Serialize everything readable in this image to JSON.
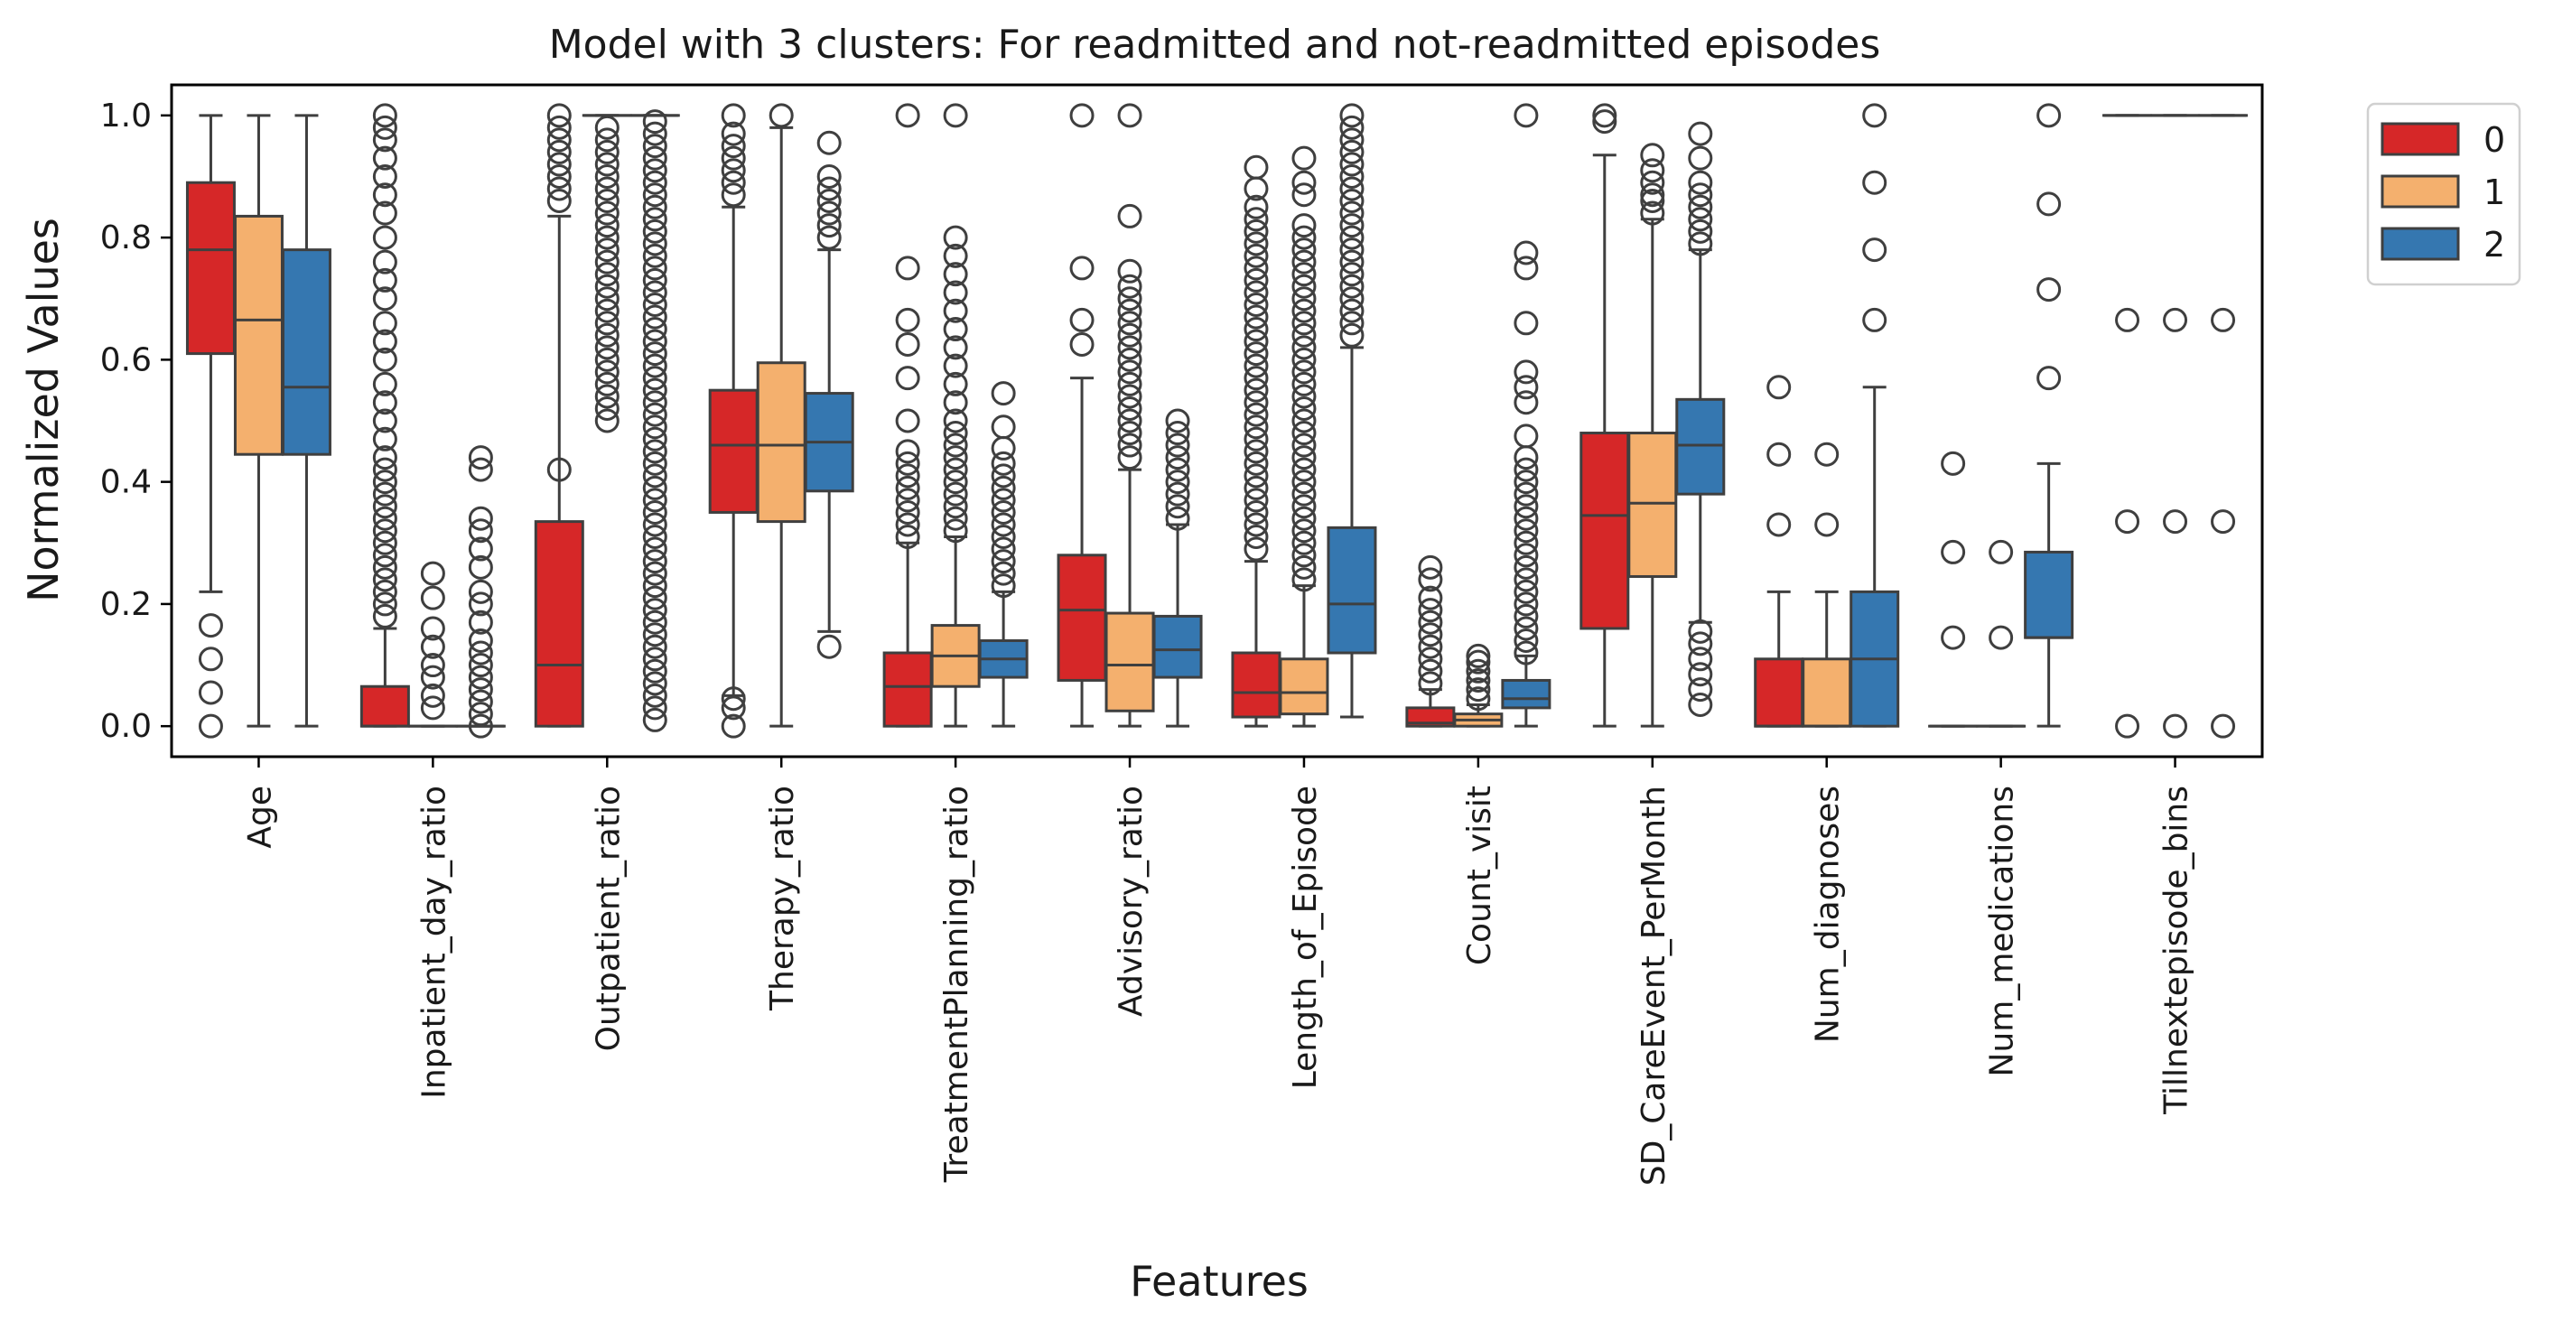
{
  "chart_data": {
    "type": "boxplot",
    "title": "Model with 3 clusters: For readmitted and not-readmitted episodes",
    "xlabel": "Features",
    "ylabel": "Normalized Values",
    "ylim": [
      -0.05,
      1.05
    ],
    "yticks": [
      "0.0",
      "0.2",
      "0.4",
      "0.6",
      "0.8",
      "1.0"
    ],
    "legend": {
      "position": "outside-top-right",
      "title": ""
    },
    "grid": false,
    "series": [
      {
        "name": "0",
        "color": "#d62728"
      },
      {
        "name": "1",
        "color": "#f4b06e"
      },
      {
        "name": "2",
        "color": "#3577b0"
      }
    ],
    "categories": [
      "Age",
      "Inpatient_day_ratio",
      "Outpatient_ratio",
      "Therapy_ratio",
      "TreatmentPlanning_ratio",
      "Advisory_ratio",
      "Length_of_Episode",
      "Count_visit",
      "SD_CareEvent_PerMonth",
      "Num_diagnoses",
      "Num_medications",
      "Tillnextepisode_bins"
    ],
    "boxes": [
      [
        {
          "whislo": 0.22,
          "q1": 0.61,
          "med": 0.78,
          "q3": 0.89,
          "whishi": 1.0,
          "fliers": [
            0.0,
            0.055,
            0.11,
            0.165
          ]
        },
        {
          "whislo": 0.0,
          "q1": 0.445,
          "med": 0.665,
          "q3": 0.835,
          "whishi": 1.0,
          "fliers": []
        },
        {
          "whislo": 0.0,
          "q1": 0.445,
          "med": 0.555,
          "q3": 0.78,
          "whishi": 1.0,
          "fliers": []
        }
      ],
      [
        {
          "whislo": 0.0,
          "q1": 0.0,
          "med": 0.0,
          "q3": 0.065,
          "whishi": 0.16,
          "fliers": [
            0.18,
            0.2,
            0.22,
            0.24,
            0.26,
            0.28,
            0.3,
            0.32,
            0.34,
            0.36,
            0.38,
            0.4,
            0.42,
            0.44,
            0.47,
            0.5,
            0.53,
            0.56,
            0.6,
            0.63,
            0.66,
            0.7,
            0.73,
            0.76,
            0.8,
            0.84,
            0.87,
            0.9,
            0.93,
            0.96,
            0.98,
            1.0
          ]
        },
        {
          "whislo": 0.0,
          "q1": 0.0,
          "med": 0.0,
          "q3": 0.0,
          "whishi": 0.0,
          "fliers": [
            0.03,
            0.05,
            0.08,
            0.1,
            0.13,
            0.16,
            0.21,
            0.25
          ]
        },
        {
          "whislo": 0.0,
          "q1": 0.0,
          "med": 0.0,
          "q3": 0.0,
          "whishi": 0.0,
          "fliers": [
            0.0,
            0.02,
            0.04,
            0.06,
            0.08,
            0.1,
            0.12,
            0.14,
            0.17,
            0.2,
            0.22,
            0.26,
            0.29,
            0.32,
            0.34,
            0.42,
            0.44
          ]
        }
      ],
      [
        {
          "whislo": 0.0,
          "q1": 0.0,
          "med": 0.1,
          "q3": 0.335,
          "whishi": 0.835,
          "fliers": [
            0.42,
            0.86,
            0.88,
            0.9,
            0.92,
            0.94,
            0.96,
            0.98,
            1.0
          ]
        },
        {
          "whislo": 1.0,
          "q1": 1.0,
          "med": 1.0,
          "q3": 1.0,
          "whishi": 1.0,
          "fliers": [
            0.5,
            0.52,
            0.54,
            0.56,
            0.58,
            0.6,
            0.62,
            0.64,
            0.66,
            0.68,
            0.7,
            0.72,
            0.74,
            0.76,
            0.78,
            0.8,
            0.82,
            0.84,
            0.86,
            0.88,
            0.9,
            0.92,
            0.94,
            0.96,
            0.98
          ]
        },
        {
          "whislo": 1.0,
          "q1": 1.0,
          "med": 1.0,
          "q3": 1.0,
          "whishi": 1.0,
          "fliers": [
            0.01,
            0.03,
            0.05,
            0.07,
            0.09,
            0.11,
            0.13,
            0.15,
            0.17,
            0.19,
            0.21,
            0.23,
            0.25,
            0.27,
            0.29,
            0.31,
            0.33,
            0.35,
            0.37,
            0.39,
            0.41,
            0.43,
            0.45,
            0.47,
            0.49,
            0.51,
            0.53,
            0.55,
            0.57,
            0.59,
            0.61,
            0.63,
            0.65,
            0.67,
            0.69,
            0.71,
            0.73,
            0.75,
            0.77,
            0.79,
            0.81,
            0.83,
            0.85,
            0.87,
            0.89,
            0.91,
            0.93,
            0.95,
            0.97,
            0.99
          ]
        }
      ],
      [
        {
          "whislo": 0.05,
          "q1": 0.35,
          "med": 0.46,
          "q3": 0.55,
          "whishi": 0.85,
          "fliers": [
            0.0,
            0.03,
            0.045,
            0.87,
            0.89,
            0.91,
            0.93,
            0.95,
            0.97,
            1.0
          ]
        },
        {
          "whislo": 0.0,
          "q1": 0.335,
          "med": 0.46,
          "q3": 0.595,
          "whishi": 0.98,
          "fliers": [
            1.0
          ]
        },
        {
          "whislo": 0.155,
          "q1": 0.385,
          "med": 0.465,
          "q3": 0.545,
          "whishi": 0.78,
          "fliers": [
            0.13,
            0.8,
            0.82,
            0.84,
            0.86,
            0.88,
            0.9,
            0.955
          ]
        }
      ],
      [
        {
          "whislo": 0.0,
          "q1": 0.0,
          "med": 0.065,
          "q3": 0.12,
          "whishi": 0.3,
          "fliers": [
            0.31,
            0.33,
            0.35,
            0.37,
            0.39,
            0.41,
            0.43,
            0.45,
            0.5,
            0.57,
            0.625,
            0.665,
            0.75,
            1.0
          ]
        },
        {
          "whislo": 0.0,
          "q1": 0.065,
          "med": 0.115,
          "q3": 0.165,
          "whishi": 0.31,
          "fliers": [
            0.32,
            0.34,
            0.36,
            0.38,
            0.4,
            0.42,
            0.44,
            0.46,
            0.48,
            0.5,
            0.53,
            0.56,
            0.59,
            0.62,
            0.65,
            0.68,
            0.71,
            0.74,
            0.77,
            0.8,
            1.0
          ]
        },
        {
          "whislo": 0.0,
          "q1": 0.08,
          "med": 0.11,
          "q3": 0.14,
          "whishi": 0.22,
          "fliers": [
            0.23,
            0.25,
            0.27,
            0.29,
            0.31,
            0.33,
            0.35,
            0.37,
            0.39,
            0.41,
            0.43,
            0.455,
            0.49,
            0.545
          ]
        }
      ],
      [
        {
          "whislo": 0.0,
          "q1": 0.075,
          "med": 0.19,
          "q3": 0.28,
          "whishi": 0.57,
          "fliers": [
            0.625,
            0.665,
            0.75,
            1.0
          ]
        },
        {
          "whislo": 0.0,
          "q1": 0.025,
          "med": 0.1,
          "q3": 0.185,
          "whishi": 0.42,
          "fliers": [
            0.44,
            0.46,
            0.48,
            0.5,
            0.52,
            0.54,
            0.56,
            0.58,
            0.6,
            0.62,
            0.64,
            0.66,
            0.68,
            0.7,
            0.72,
            0.745,
            0.835,
            1.0
          ]
        },
        {
          "whislo": 0.0,
          "q1": 0.08,
          "med": 0.125,
          "q3": 0.18,
          "whishi": 0.33,
          "fliers": [
            0.34,
            0.36,
            0.38,
            0.4,
            0.42,
            0.44,
            0.46,
            0.48,
            0.5
          ]
        }
      ],
      [
        {
          "whislo": 0.0,
          "q1": 0.015,
          "med": 0.055,
          "q3": 0.12,
          "whishi": 0.27,
          "fliers": [
            0.29,
            0.31,
            0.33,
            0.35,
            0.37,
            0.39,
            0.41,
            0.43,
            0.45,
            0.47,
            0.49,
            0.51,
            0.53,
            0.55,
            0.57,
            0.59,
            0.61,
            0.63,
            0.65,
            0.67,
            0.69,
            0.71,
            0.73,
            0.75,
            0.77,
            0.79,
            0.81,
            0.83,
            0.85,
            0.88,
            0.915
          ]
        },
        {
          "whislo": 0.0,
          "q1": 0.02,
          "med": 0.055,
          "q3": 0.11,
          "whishi": 0.23,
          "fliers": [
            0.24,
            0.26,
            0.28,
            0.3,
            0.32,
            0.34,
            0.36,
            0.38,
            0.4,
            0.42,
            0.44,
            0.46,
            0.48,
            0.5,
            0.52,
            0.54,
            0.56,
            0.58,
            0.6,
            0.62,
            0.64,
            0.66,
            0.68,
            0.7,
            0.72,
            0.74,
            0.76,
            0.78,
            0.8,
            0.82,
            0.87,
            0.89,
            0.93
          ]
        },
        {
          "whislo": 0.015,
          "q1": 0.12,
          "med": 0.2,
          "q3": 0.325,
          "whishi": 0.62,
          "fliers": [
            0.64,
            0.66,
            0.68,
            0.7,
            0.72,
            0.74,
            0.76,
            0.78,
            0.8,
            0.82,
            0.84,
            0.86,
            0.88,
            0.9,
            0.92,
            0.94,
            0.96,
            0.98,
            1.0
          ]
        }
      ],
      [
        {
          "whislo": 0.0,
          "q1": 0.0,
          "med": 0.005,
          "q3": 0.03,
          "whishi": 0.06,
          "fliers": [
            0.07,
            0.09,
            0.11,
            0.13,
            0.15,
            0.17,
            0.19,
            0.21,
            0.24,
            0.26
          ]
        },
        {
          "whislo": 0.0,
          "q1": 0.0,
          "med": 0.01,
          "q3": 0.02,
          "whishi": 0.035,
          "fliers": [
            0.045,
            0.06,
            0.075,
            0.09,
            0.105,
            0.115
          ]
        },
        {
          "whislo": 0.0,
          "q1": 0.03,
          "med": 0.045,
          "q3": 0.075,
          "whishi": 0.115,
          "fliers": [
            0.12,
            0.14,
            0.16,
            0.18,
            0.2,
            0.22,
            0.24,
            0.26,
            0.28,
            0.3,
            0.32,
            0.34,
            0.36,
            0.38,
            0.4,
            0.42,
            0.44,
            0.475,
            0.53,
            0.555,
            0.58,
            0.66,
            0.75,
            0.775,
            1.0
          ]
        }
      ],
      [
        {
          "whislo": 0.0,
          "q1": 0.16,
          "med": 0.345,
          "q3": 0.48,
          "whishi": 0.935,
          "fliers": [
            0.99,
            1.0
          ]
        },
        {
          "whislo": 0.0,
          "q1": 0.245,
          "med": 0.365,
          "q3": 0.48,
          "whishi": 0.83,
          "fliers": [
            0.84,
            0.86,
            0.87,
            0.89,
            0.91,
            0.935
          ]
        },
        {
          "whislo": 0.17,
          "q1": 0.38,
          "med": 0.46,
          "q3": 0.535,
          "whishi": 0.78,
          "fliers": [
            0.035,
            0.06,
            0.085,
            0.11,
            0.135,
            0.155,
            0.79,
            0.81,
            0.83,
            0.85,
            0.87,
            0.89,
            0.93,
            0.97
          ]
        }
      ],
      [
        {
          "whislo": 0.0,
          "q1": 0.0,
          "med": 0.0,
          "q3": 0.11,
          "whishi": 0.22,
          "fliers": [
            0.33,
            0.445,
            0.555
          ]
        },
        {
          "whislo": 0.0,
          "q1": 0.0,
          "med": 0.0,
          "q3": 0.11,
          "whishi": 0.22,
          "fliers": [
            0.33,
            0.445
          ]
        },
        {
          "whislo": 0.0,
          "q1": 0.0,
          "med": 0.11,
          "q3": 0.22,
          "whishi": 0.555,
          "fliers": [
            0.665,
            0.78,
            0.89,
            1.0
          ]
        }
      ],
      [
        {
          "whislo": 0.0,
          "q1": 0.0,
          "med": 0.0,
          "q3": 0.0,
          "whishi": 0.0,
          "fliers": [
            0.145,
            0.285,
            0.43
          ]
        },
        {
          "whislo": 0.0,
          "q1": 0.0,
          "med": 0.0,
          "q3": 0.0,
          "whishi": 0.0,
          "fliers": [
            0.145,
            0.285
          ]
        },
        {
          "whislo": 0.0,
          "q1": 0.145,
          "med": 0.145,
          "q3": 0.285,
          "whishi": 0.43,
          "fliers": [
            0.57,
            0.715,
            0.855,
            1.0
          ]
        }
      ],
      [
        {
          "whislo": 1.0,
          "q1": 1.0,
          "med": 1.0,
          "q3": 1.0,
          "whishi": 1.0,
          "fliers": [
            0.0,
            0.335,
            0.665
          ]
        },
        {
          "whislo": 1.0,
          "q1": 1.0,
          "med": 1.0,
          "q3": 1.0,
          "whishi": 1.0,
          "fliers": [
            0.0,
            0.335,
            0.665
          ]
        },
        {
          "whislo": 1.0,
          "q1": 1.0,
          "med": 1.0,
          "q3": 1.0,
          "whishi": 1.0,
          "fliers": [
            0.0,
            0.335,
            0.665
          ]
        }
      ]
    ]
  }
}
